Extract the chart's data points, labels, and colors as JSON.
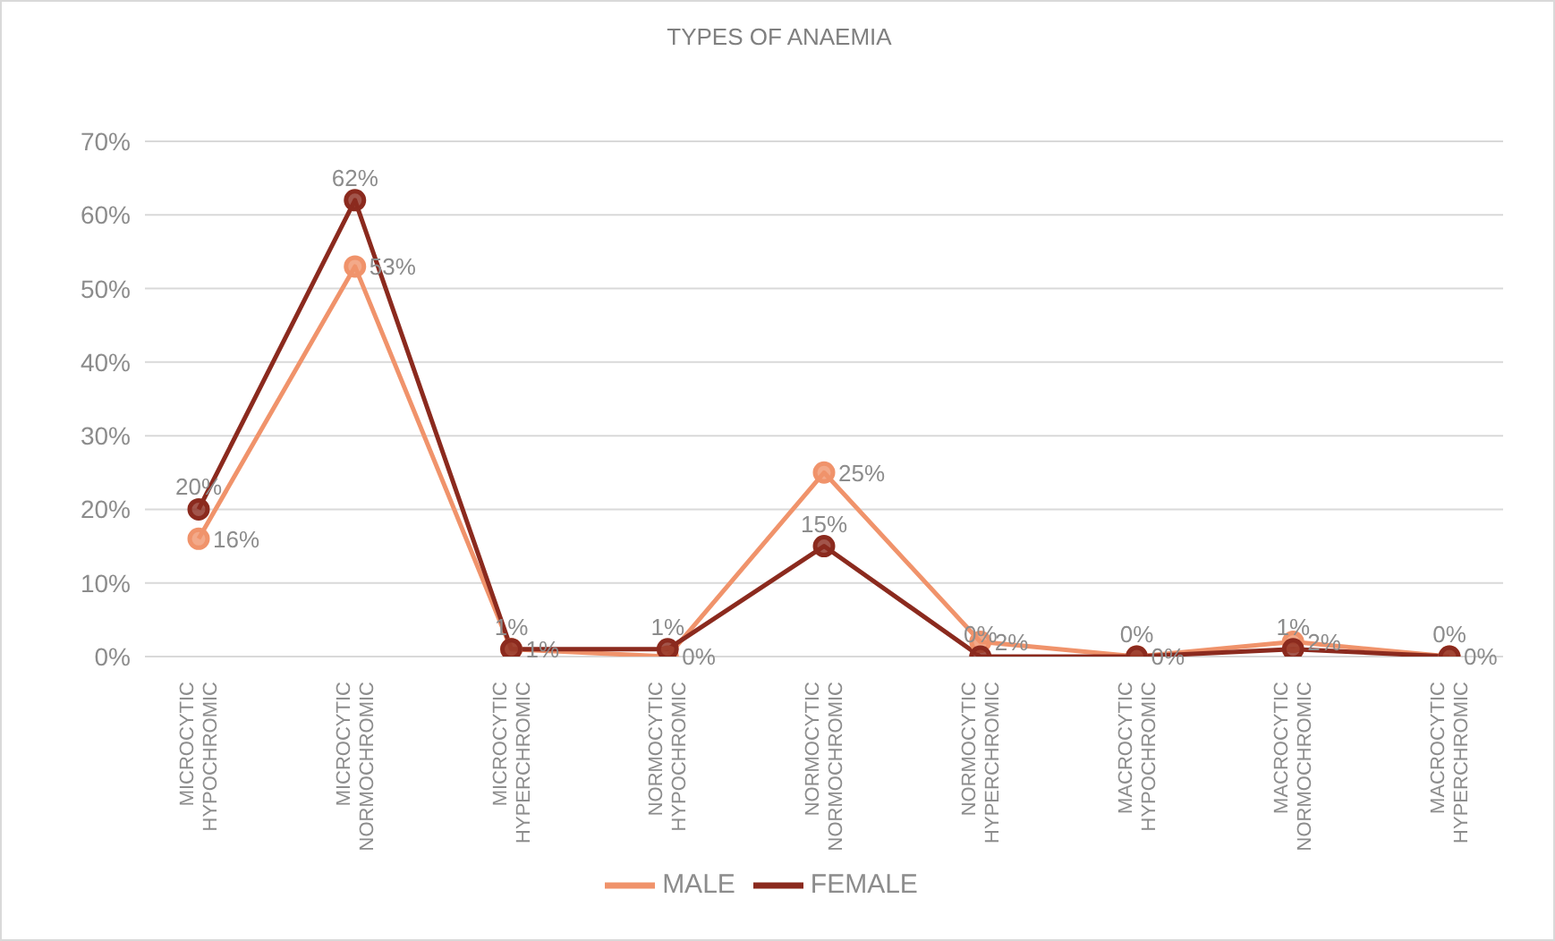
{
  "chart_data": {
    "type": "line",
    "title": "TYPES OF ANAEMIA",
    "categories": [
      "MICROCYTIC HYPOCHROMIC",
      "MICROCYTIC NORMOCHROMIC",
      "MICROCYTIC HYPERCHROMIC",
      "NORMOCYTIC HYPOCHROMIC",
      "NORMOCYTIC NORMOCHROMIC",
      "NORMOCYTIC HYPERCHROMIC",
      "MACROCYTIC HYPOCHROMIC",
      "MACROCYTIC NORMOCHROMIC",
      "MACROCYTIC HYPERCHROMIC"
    ],
    "series": [
      {
        "name": "MALE",
        "color": "#f0936b",
        "values": [
          16,
          53,
          1,
          0,
          25,
          2,
          0,
          2,
          0
        ],
        "value_labels": [
          "16%",
          "53%",
          "1%",
          "0%",
          "25%",
          "2%",
          "0%",
          "2%",
          "0%"
        ]
      },
      {
        "name": "FEMALE",
        "color": "#8b2a1e",
        "values": [
          20,
          62,
          1,
          1,
          15,
          0,
          0,
          1,
          0
        ],
        "value_labels": [
          "20%",
          "62%",
          "1%",
          "1%",
          "15%",
          "0%",
          "0%",
          "1%",
          "0%"
        ]
      }
    ],
    "ylim": [
      0,
      70
    ],
    "yticks": [
      {
        "value": 0,
        "label": "0%"
      },
      {
        "value": 10,
        "label": "10%"
      },
      {
        "value": 20,
        "label": "20%"
      },
      {
        "value": 30,
        "label": "30%"
      },
      {
        "value": 40,
        "label": "40%"
      },
      {
        "value": 50,
        "label": "50%"
      },
      {
        "value": 60,
        "label": "60%"
      },
      {
        "value": 70,
        "label": "70%"
      }
    ],
    "grid": "y",
    "legend": "bottom",
    "marker": "circle",
    "line_style": "solid"
  }
}
